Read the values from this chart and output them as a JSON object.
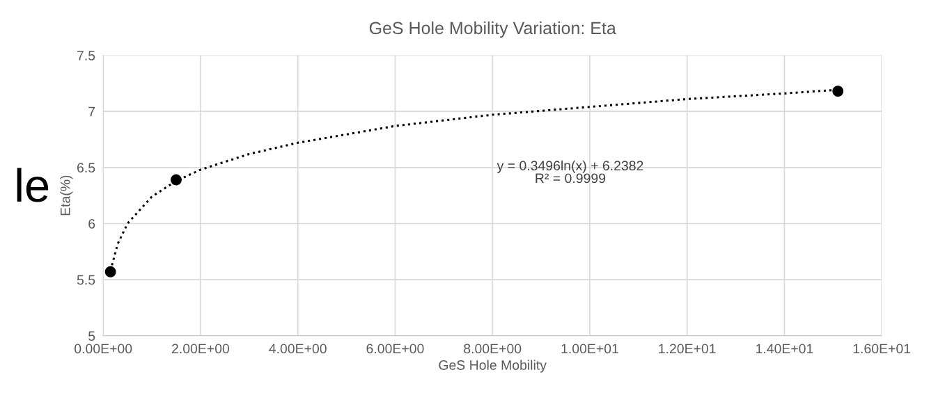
{
  "chart_data": {
    "type": "scatter",
    "title": "GeS Hole Mobility Variation: Eta",
    "xlabel": "GeS Hole Mobility",
    "ylabel": "Eta(%)",
    "xlim": [
      0,
      16
    ],
    "ylim": [
      5,
      7.5
    ],
    "xticks": [
      {
        "value": 0,
        "label": "0.00E+00"
      },
      {
        "value": 2,
        "label": "2.00E+00"
      },
      {
        "value": 4,
        "label": "4.00E+00"
      },
      {
        "value": 6,
        "label": "6.00E+00"
      },
      {
        "value": 8,
        "label": "8.00E+00"
      },
      {
        "value": 10,
        "label": "1.00E+01"
      },
      {
        "value": 12,
        "label": "1.20E+01"
      },
      {
        "value": 14,
        "label": "1.40E+01"
      },
      {
        "value": 16,
        "label": "1.60E+01"
      }
    ],
    "yticks": [
      5,
      5.5,
      6,
      6.5,
      7,
      7.5
    ],
    "grid": true,
    "legend": false,
    "series": [
      {
        "type": "line",
        "line_style": "dotted",
        "marker": "none",
        "color": "#000000",
        "x": [
          0.15,
          0.3,
          0.5,
          1,
          1.5,
          2,
          3,
          4,
          6,
          8,
          10,
          12,
          14,
          15
        ],
        "values": [
          5.58,
          5.82,
          6.0,
          6.24,
          6.38,
          6.48,
          6.62,
          6.72,
          6.87,
          6.97,
          7.04,
          7.11,
          7.16,
          7.19
        ]
      },
      {
        "marker": "circle",
        "color": "#000000",
        "x": [
          0.15,
          1.5,
          15.1
        ],
        "values": [
          5.57,
          6.39,
          7.18
        ]
      }
    ],
    "annotations": [
      "y = 0.3496ln(x) + 6.2382\nR² = 0.9999",
      "le"
    ]
  }
}
